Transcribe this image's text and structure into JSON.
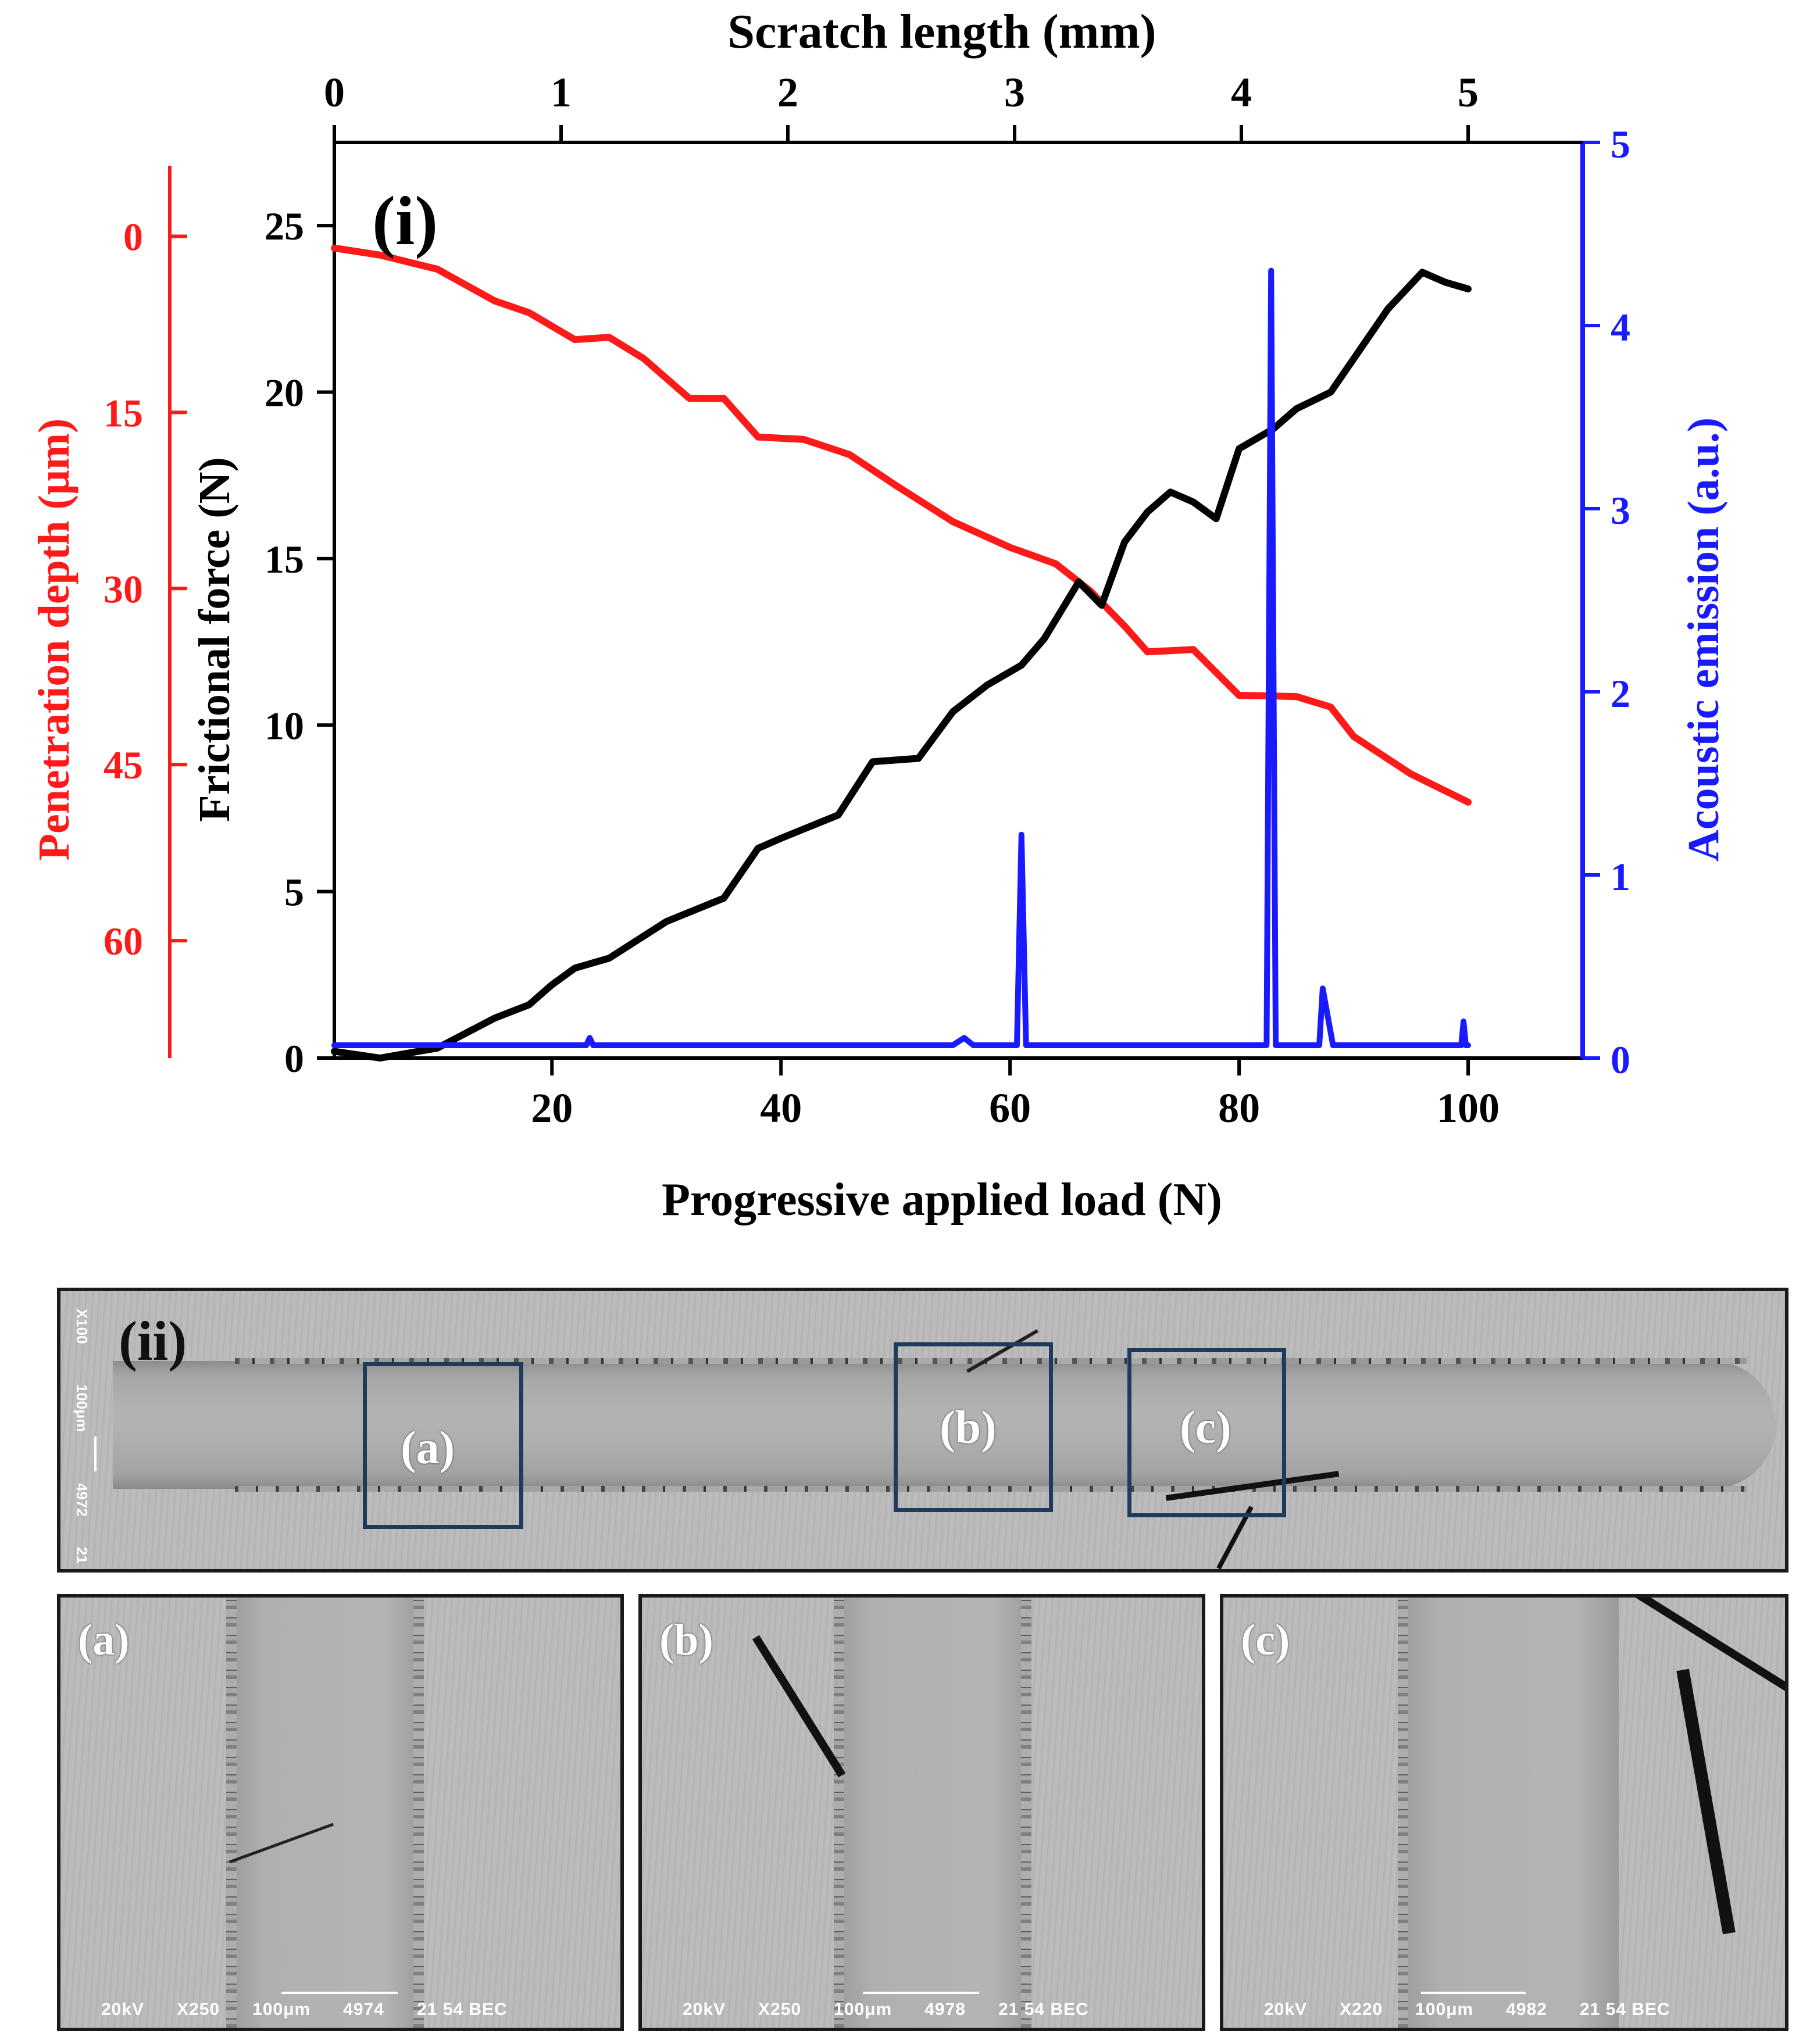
{
  "chart_data": {
    "type": "line",
    "panel_label": "(i)",
    "xlabel": "Progressive applied load (N)",
    "x_ticks": [
      20,
      40,
      60,
      80,
      100
    ],
    "xlim": [
      1,
      110
    ],
    "top_xlabel": "Scratch length (mm)",
    "top_ticks": [
      "0",
      "1",
      "2",
      "3",
      "4",
      "5"
    ],
    "left_outer_label": "Penetration depth (μm)",
    "left_outer_ticks": [
      0,
      15,
      30,
      45,
      60
    ],
    "left_outer_range_top": -8,
    "left_outer_range_bottom": 70,
    "left_inner_label": "Frictional force (N)",
    "left_inner_ticks": [
      0,
      5,
      10,
      15,
      20,
      25
    ],
    "left_inner_range": [
      0,
      27.5
    ],
    "right_label": "Acoustic emission (a.u.)",
    "right_ticks": [
      0,
      1,
      2,
      3,
      4,
      5
    ],
    "right_range": [
      0,
      5
    ],
    "colors": {
      "depth": "#ff1a1a",
      "friction": "#000000",
      "acoustic": "#1a1aff"
    },
    "series": [
      {
        "name": "Penetration depth",
        "axis": "depth",
        "x": [
          1,
          5,
          10,
          15,
          18,
          22,
          25,
          28,
          32,
          35,
          38,
          42,
          46,
          50,
          55,
          60,
          64,
          67,
          70,
          72,
          76,
          80,
          85,
          88,
          90,
          95,
          100
        ],
        "values": [
          1,
          1.6,
          2.8,
          5.5,
          6.5,
          8.8,
          8.6,
          10.4,
          13.8,
          13.8,
          17.1,
          17.3,
          18.6,
          21.2,
          24.3,
          26.5,
          27.9,
          30.2,
          33.2,
          35.4,
          35.2,
          39.1,
          39.2,
          40.1,
          42.6,
          45.8,
          48.2
        ]
      },
      {
        "name": "Frictional force",
        "axis": "friction",
        "x": [
          1,
          5,
          10,
          15,
          18,
          20,
          22,
          25,
          30,
          35,
          38,
          40,
          45,
          48,
          52,
          55,
          58,
          61,
          63,
          66,
          68,
          70,
          72,
          74,
          76,
          78,
          80,
          83,
          85,
          88,
          90,
          93,
          96,
          98,
          100
        ],
        "values": [
          0.2,
          0,
          0.3,
          1.2,
          1.6,
          2.2,
          2.7,
          3.0,
          4.1,
          4.8,
          6.3,
          6.6,
          7.3,
          8.9,
          9.0,
          10.4,
          11.2,
          11.8,
          12.6,
          14.3,
          13.6,
          15.5,
          16.4,
          17.0,
          16.7,
          16.2,
          18.3,
          18.9,
          19.5,
          20.0,
          21.0,
          22.5,
          23.6,
          23.3,
          23.1
        ]
      },
      {
        "name": "Acoustic emission",
        "axis": "acoustic",
        "x": [
          1,
          23,
          23.3,
          23.6,
          55,
          56,
          56.8,
          60.6,
          61,
          61.4,
          82.4,
          82.8,
          83.2,
          87,
          87.3,
          88.2,
          88.8,
          99.4,
          99.6,
          99.8,
          100
        ],
        "values": [
          0.07,
          0.07,
          0.11,
          0.07,
          0.07,
          0.11,
          0.07,
          0.07,
          1.22,
          0.07,
          0.07,
          4.3,
          0.07,
          0.07,
          0.38,
          0.07,
          0.07,
          0.07,
          0.2,
          0.07,
          0.07
        ]
      }
    ]
  },
  "sem": {
    "panel_label": "(ii)",
    "overview_info": [
      "X100",
      "100μm",
      "4972",
      "21"
    ],
    "roi_labels": [
      "(a)",
      "(b)",
      "(c)"
    ],
    "subpanels": [
      {
        "label": "(a)",
        "info": "20kV      X250      100μm      4974      21 54 BEC"
      },
      {
        "label": "(b)",
        "info": "20kV      X250      100μm      4978      21 54 BEC"
      },
      {
        "label": "(c)",
        "info": "20kV      X220      100μm      4982      21 54 BEC"
      }
    ]
  }
}
